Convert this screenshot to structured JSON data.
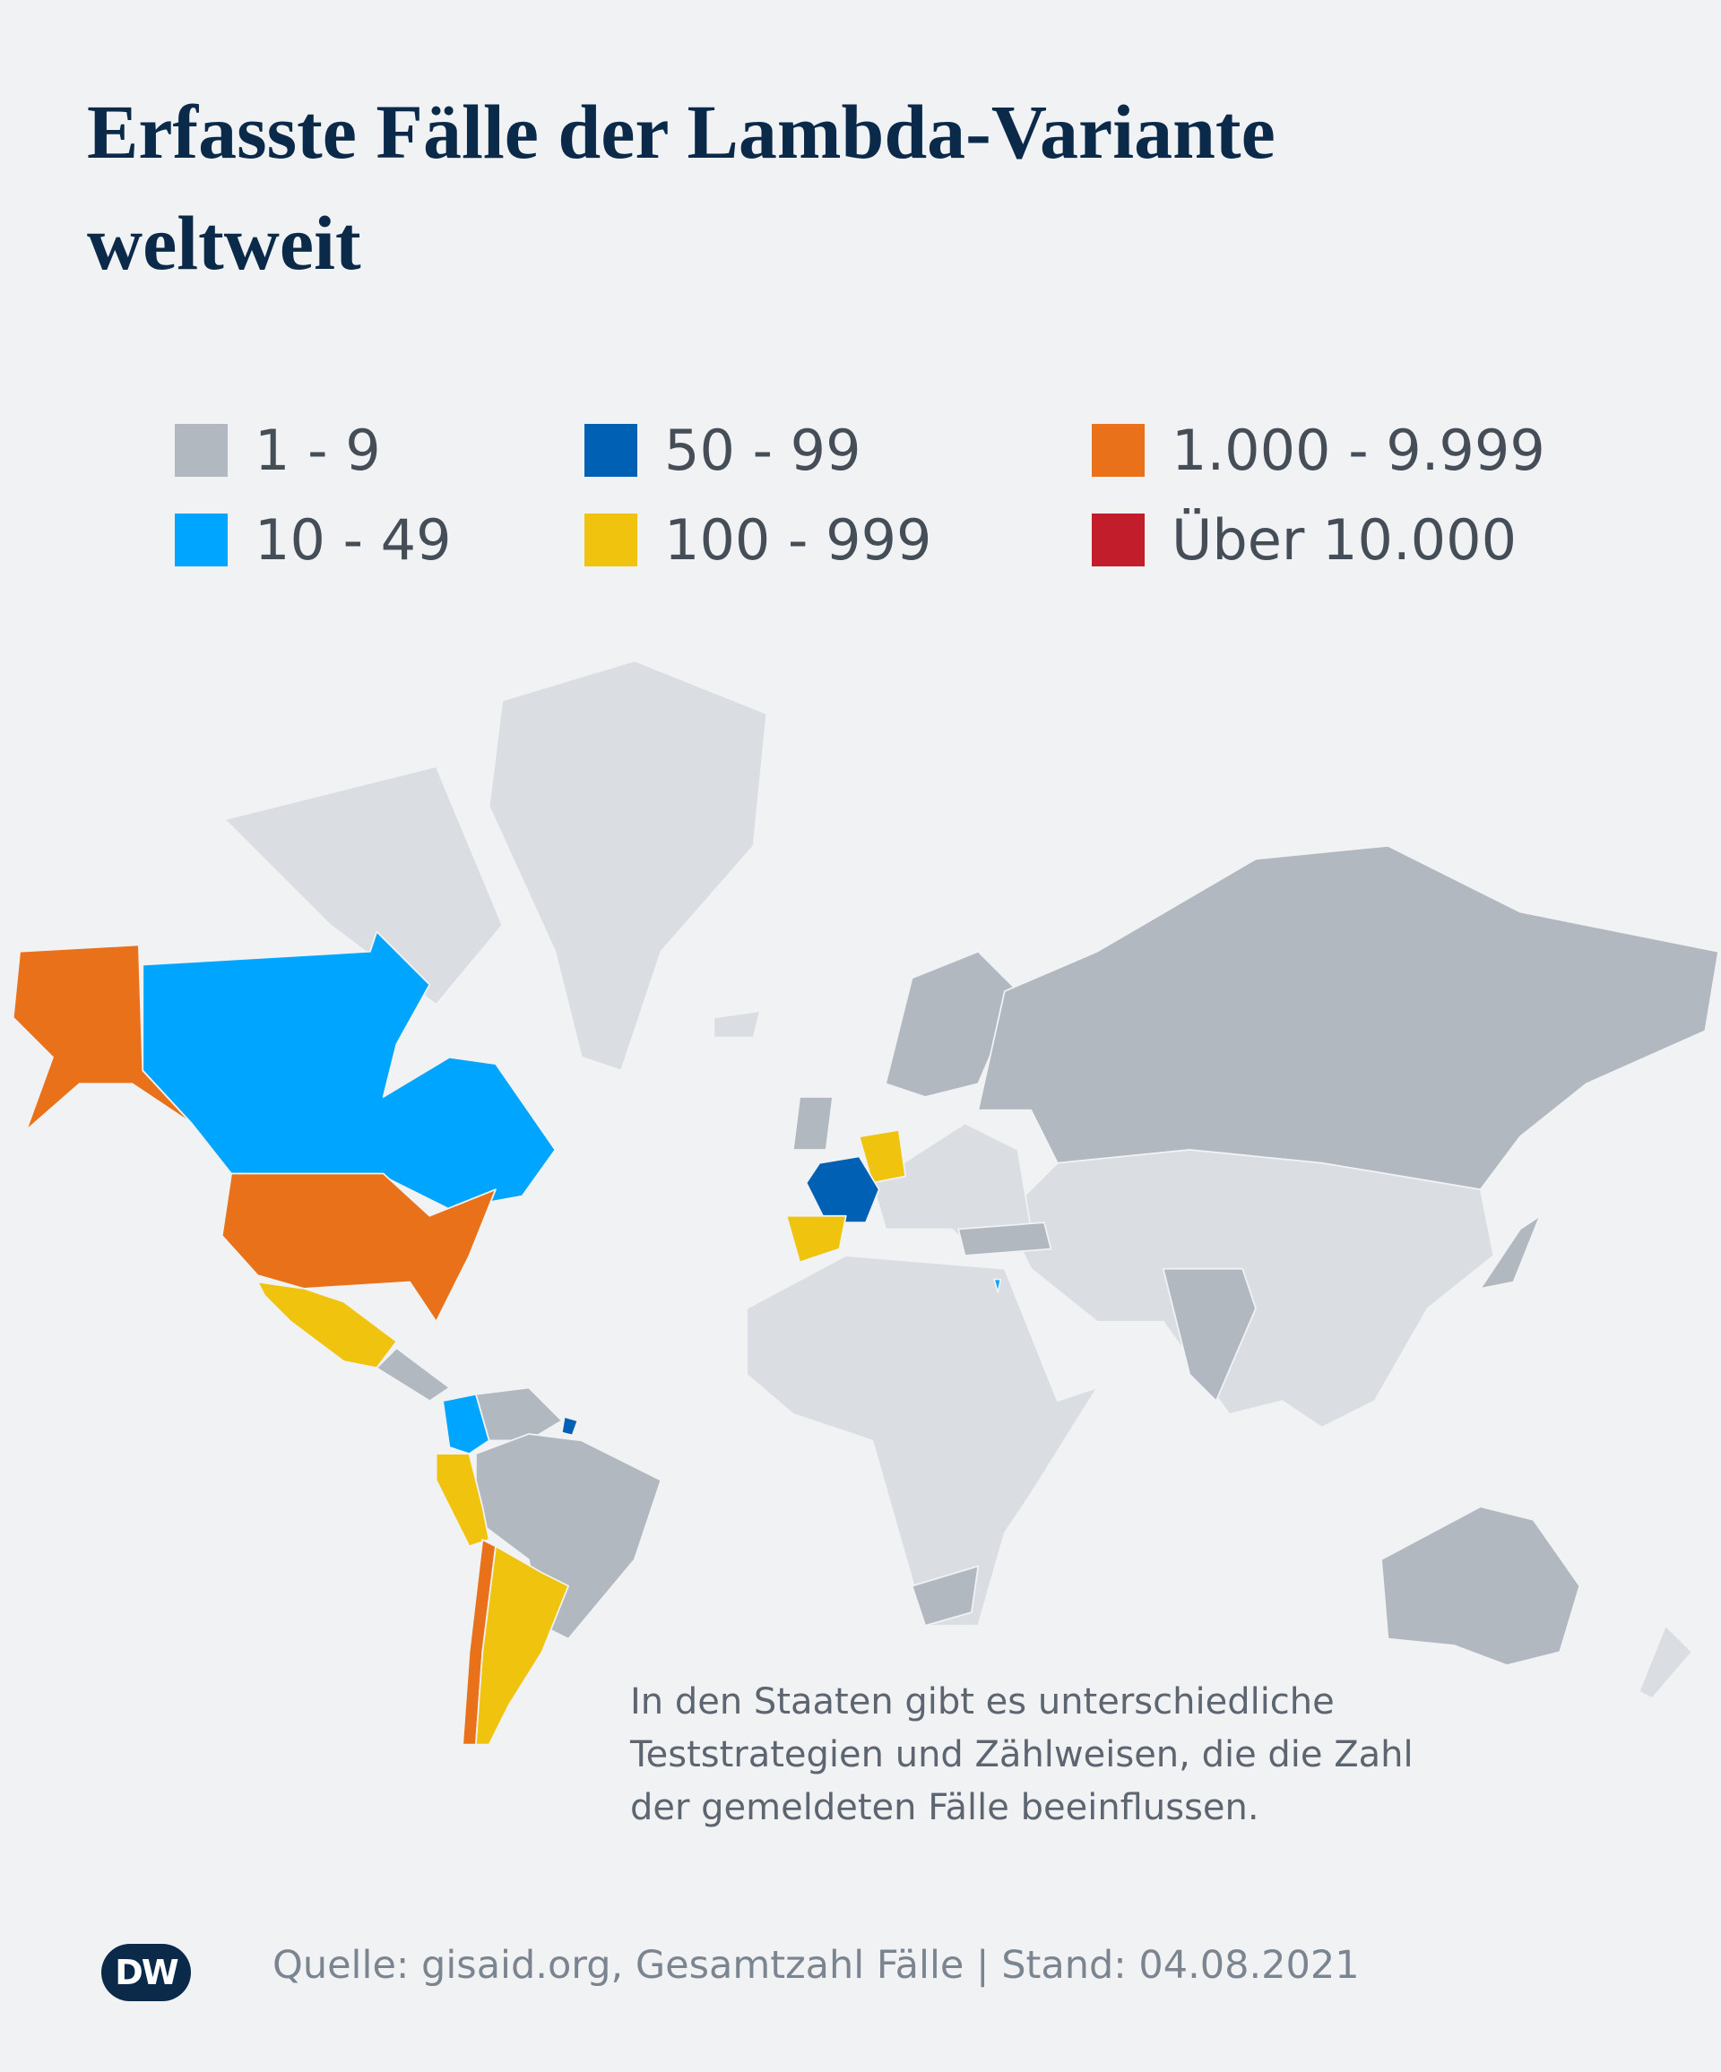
{
  "header": {
    "title": "Erfasste Fälle der Lambda-Variante weltweit"
  },
  "legend": {
    "items": [
      {
        "label": "1 - 9",
        "color": "#b1b8c0"
      },
      {
        "label": "10 - 49",
        "color": "#00a5ff"
      },
      {
        "label": "50 - 99",
        "color": "#0061b4"
      },
      {
        "label": "100 - 999",
        "color": "#f0c30f"
      },
      {
        "label": "1.000 - 9.999",
        "color": "#e8711a"
      },
      {
        "label": "Über 10.000",
        "color": "#c21d2b"
      }
    ]
  },
  "note": "In den Staaten gibt es unterschiedliche Teststrategien und Zählweisen, die die Zahl der gemeldeten Fälle beeinflussen.",
  "footer": {
    "logo": "DW",
    "source": "Quelle: gisaid.org, Gesamtzahl Fälle | Stand: 04.08.2021"
  }
}
